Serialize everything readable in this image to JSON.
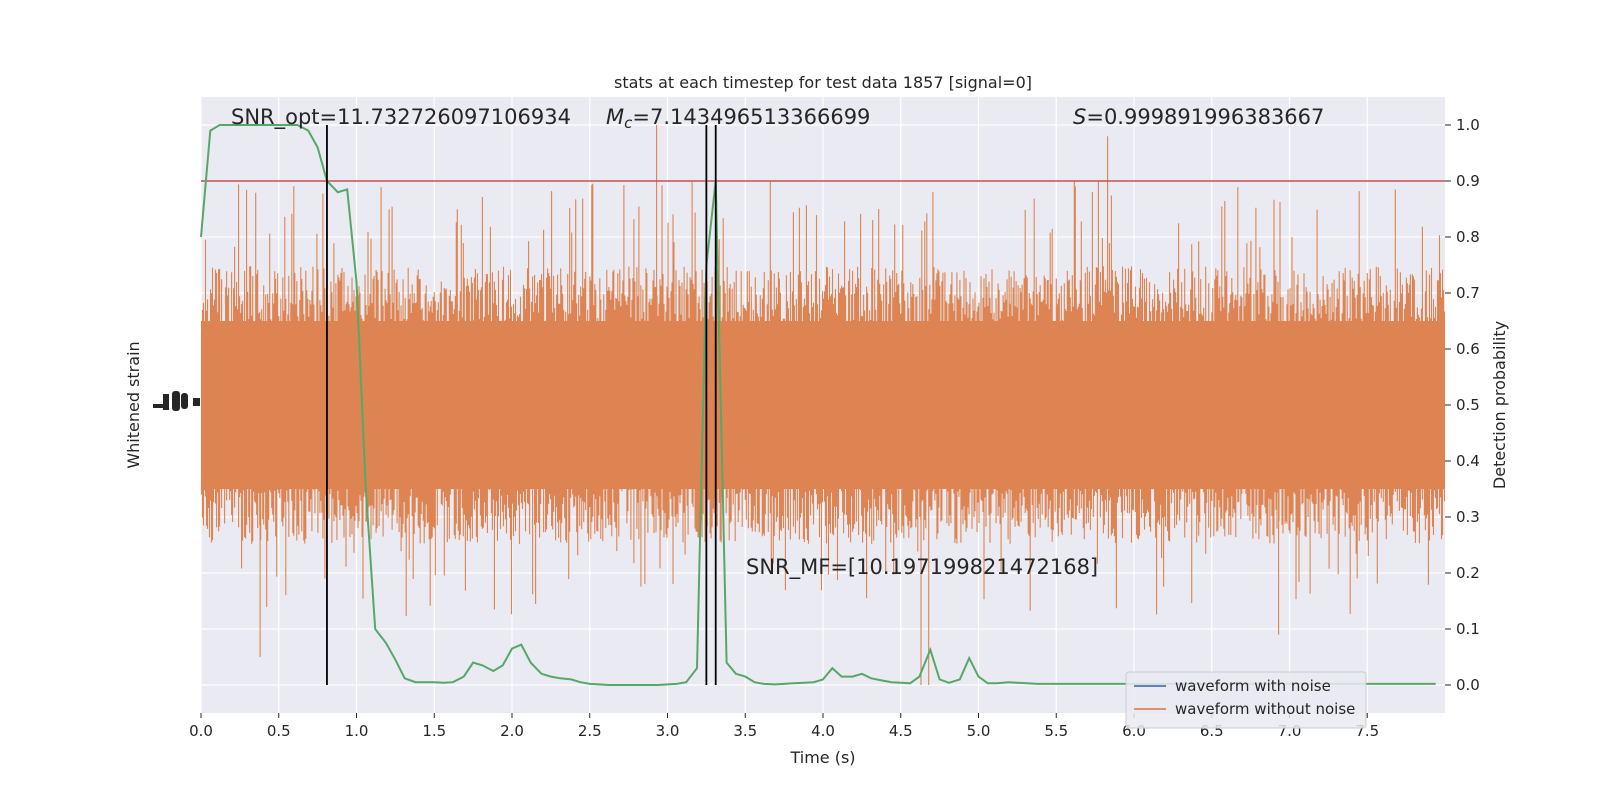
{
  "chart_data": {
    "type": "line",
    "title": "stats at each timestep for test data 1857 [signal=0]",
    "xlabel": "Time (s)",
    "ylabel_left": "Whitened strain",
    "ylabel_right": "Detection probability",
    "xlim": [
      0.0,
      8.0
    ],
    "ylim_right": [
      -0.05,
      1.05
    ],
    "x_ticks": [
      "0.0",
      "0.5",
      "1.0",
      "1.5",
      "2.0",
      "2.5",
      "3.0",
      "3.5",
      "4.0",
      "4.5",
      "5.0",
      "5.5",
      "6.0",
      "6.5",
      "7.0",
      "7.5"
    ],
    "y_right_ticks": [
      "0.0",
      "0.1",
      "0.2",
      "0.3",
      "0.4",
      "0.5",
      "0.6",
      "0.7",
      "0.8",
      "0.9",
      "1.0"
    ],
    "grid": true,
    "legend_placement": "lower-right",
    "legend": [
      {
        "label": "waveform with noise",
        "color": "#4c72b0"
      },
      {
        "label": "waveform without noise",
        "color": "#dd8452"
      }
    ],
    "annotations": {
      "snr_opt": "SNR_opt=11.732726097106934",
      "mc_symbol": "M",
      "mc_sub": "c",
      "mc_value": "=7.143496513366699",
      "s_symbol": "S",
      "s_value": "=0.999891996383667",
      "snr_mf": "SNR_MF=[10.197199821472168]"
    },
    "threshold": {
      "y": 0.9,
      "color": "#c44e52"
    },
    "vertical_lines_x": [
      0.81,
      3.25,
      3.31
    ],
    "detection_probability": {
      "color": "#55a868",
      "x": [
        0.0,
        0.06,
        0.12,
        0.19,
        0.25,
        0.31,
        0.38,
        0.44,
        0.5,
        0.56,
        0.62,
        0.69,
        0.75,
        0.81,
        0.88,
        0.94,
        1.0,
        1.06,
        1.12,
        1.19,
        1.25,
        1.31,
        1.38,
        1.44,
        1.5,
        1.56,
        1.62,
        1.69,
        1.75,
        1.81,
        1.88,
        1.94,
        2.0,
        2.06,
        2.12,
        2.19,
        2.25,
        2.31,
        2.38,
        2.44,
        2.5,
        2.56,
        2.62,
        2.69,
        2.75,
        2.81,
        2.88,
        2.94,
        3.0,
        3.06,
        3.12,
        3.19,
        3.25,
        3.31,
        3.38,
        3.44,
        3.5,
        3.56,
        3.62,
        3.69,
        3.75,
        3.81,
        3.88,
        3.94,
        4.0,
        4.06,
        4.12,
        4.19,
        4.25,
        4.31,
        4.38,
        4.44,
        4.5,
        4.56,
        4.62,
        4.69,
        4.75,
        4.81,
        4.88,
        4.94,
        5.0,
        5.06,
        5.12,
        5.19,
        5.25,
        5.31,
        5.38,
        5.5,
        5.75,
        6.0,
        6.25,
        6.5,
        6.75,
        7.0,
        7.25,
        7.5,
        7.75,
        7.94
      ],
      "y": [
        0.8,
        0.99,
        1.0,
        1.0,
        1.0,
        1.0,
        1.0,
        1.0,
        1.0,
        1.0,
        1.0,
        0.99,
        0.96,
        0.9,
        0.88,
        0.885,
        0.72,
        0.35,
        0.1,
        0.075,
        0.045,
        0.012,
        0.005,
        0.005,
        0.005,
        0.004,
        0.005,
        0.015,
        0.04,
        0.035,
        0.025,
        0.035,
        0.065,
        0.072,
        0.04,
        0.02,
        0.015,
        0.012,
        0.01,
        0.005,
        0.002,
        0.001,
        0.0,
        0.0,
        0.0,
        0.0,
        0.0,
        0.0,
        0.001,
        0.002,
        0.005,
        0.03,
        0.75,
        0.9,
        0.04,
        0.02,
        0.015,
        0.005,
        0.002,
        0.001,
        0.002,
        0.003,
        0.004,
        0.005,
        0.01,
        0.03,
        0.015,
        0.015,
        0.02,
        0.012,
        0.008,
        0.005,
        0.004,
        0.003,
        0.015,
        0.063,
        0.01,
        0.004,
        0.01,
        0.048,
        0.015,
        0.003,
        0.003,
        0.005,
        0.004,
        0.003,
        0.002,
        0.002,
        0.002,
        0.002,
        0.002,
        0.002,
        0.002,
        0.002,
        0.002,
        0.002,
        0.002,
        0.002
      ]
    },
    "waveform_without_noise": {
      "color": "#dd8452",
      "envelope_right_axis": {
        "typical_low": 0.33,
        "typical_high": 0.67,
        "max": 1.0,
        "min": 0.0
      }
    }
  }
}
